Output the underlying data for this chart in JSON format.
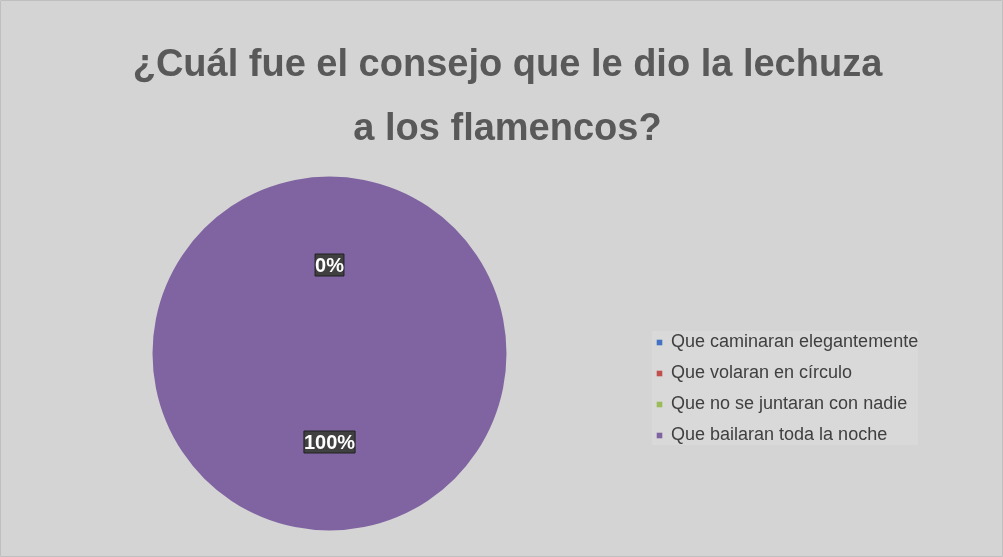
{
  "chart_data": {
    "type": "pie",
    "title": "¿Cuál fue el consejo que le dio la lechuza a los flamencos?",
    "categories": [
      "Que caminaran elegantemente",
      "Que volaran en círculo",
      "Que no se juntaran con nadie",
      "Que bailaran toda la noche"
    ],
    "values": [
      0,
      0,
      0,
      100
    ],
    "colors": [
      "#4472c4",
      "#c0504d",
      "#9bbb59",
      "#8064a2"
    ],
    "value_labels": [
      "0%",
      null,
      null,
      "100%"
    ],
    "legend": "right"
  }
}
